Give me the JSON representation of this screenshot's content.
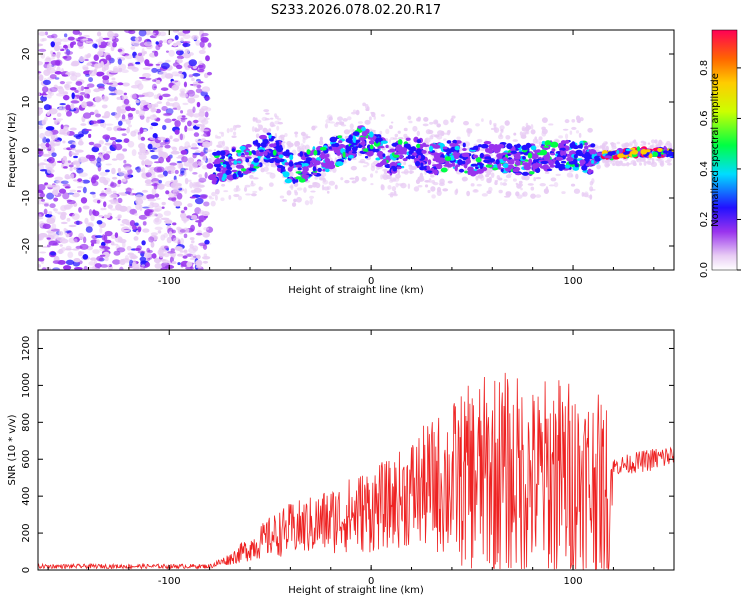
{
  "page_title": "S233.2026.078.02.20.R17",
  "chart_data": [
    {
      "type": "heatmap",
      "title": "S233.2026.078.02.20.R17",
      "xlabel": "Height of straight line (km)",
      "ylabel": "Frequency (Hz)",
      "xlim": [
        -165,
        150
      ],
      "ylim": [
        -25,
        25
      ],
      "x_ticks": [
        "-100",
        "0",
        "100"
      ],
      "y_ticks": [
        "20",
        "10",
        "0",
        "-10",
        "-20"
      ],
      "colorbar": {
        "label": "Normalized spectral amplitude",
        "range": [
          0,
          0.95
        ],
        "ticks": [
          "0.0",
          "0.2",
          "0.4",
          "0.6",
          "0.8"
        ],
        "colors": [
          "#ffffff",
          "#e8ccf4",
          "#9933ee",
          "#2211ff",
          "#00ddff",
          "#00ff44",
          "#ccff00",
          "#ffcc00",
          "#ff6600",
          "#ff0055"
        ]
      },
      "ridge": {
        "x": [
          -80,
          -70,
          -60,
          -50,
          -40,
          -30,
          -20,
          -10,
          -5,
          0,
          10,
          20,
          30,
          40,
          50,
          60,
          70,
          80,
          90,
          100,
          110,
          115,
          120,
          130,
          140,
          150
        ],
        "y": [
          -4,
          -3,
          -2,
          1,
          -4,
          -3,
          -1,
          1,
          2,
          1,
          -2,
          0,
          -2,
          -1,
          -2,
          -1,
          -2,
          -2,
          -1,
          -1,
          -2,
          -1,
          -1,
          -0.5,
          -0.5,
          -0.5
        ]
      },
      "noise_region_x": [
        -165,
        -80
      ],
      "grid": false
    },
    {
      "type": "line",
      "xlabel": "Height of straight line (km)",
      "ylabel": "SNR (10 * v/v)",
      "xlim": [
        -165,
        150
      ],
      "ylim": [
        0,
        1300
      ],
      "x_ticks": [
        "-100",
        "0",
        "100"
      ],
      "y_ticks": [
        "0",
        "200",
        "400",
        "600",
        "800",
        "1000",
        "1200"
      ],
      "series": [
        {
          "color": "#ee2222",
          "envelope": {
            "x": [
              -165,
              -80,
              -70,
              -60,
              -50,
              -40,
              -30,
              -20,
              -10,
              0,
              10,
              20,
              30,
              40,
              50,
              60,
              70,
              80,
              90,
              100,
              110,
              118,
              120,
              130,
              140,
              150
            ],
            "mean": [
              20,
              20,
              60,
              120,
              180,
              220,
              240,
              270,
              300,
              330,
              360,
              420,
              460,
              480,
              500,
              520,
              520,
              480,
              500,
              480,
              460,
              420,
              560,
              580,
              600,
              620
            ],
            "spread": [
              15,
              15,
              40,
              90,
              140,
              180,
              200,
              230,
              260,
              300,
              300,
              380,
              450,
              550,
              650,
              700,
              700,
              650,
              720,
              700,
              650,
              600,
              60,
              70,
              80,
              80
            ]
          }
        }
      ],
      "grid": false
    }
  ]
}
